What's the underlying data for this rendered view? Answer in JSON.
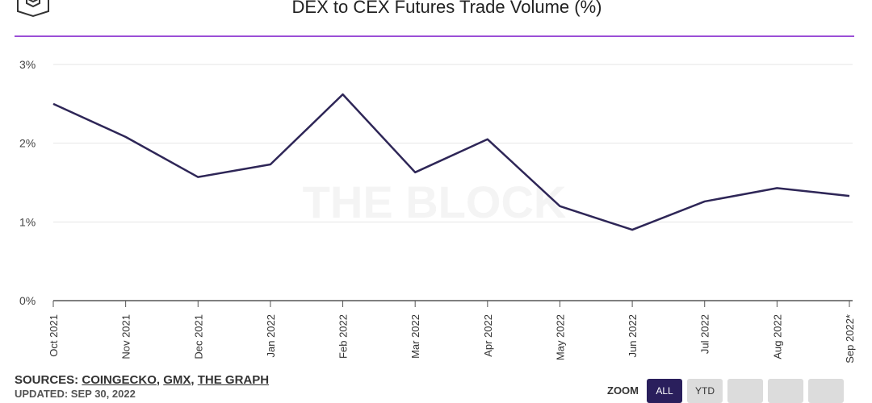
{
  "header": {
    "title": "DEX to CEX Futures Trade Volume (%)"
  },
  "footer": {
    "sources_label": "SOURCES:",
    "sources": [
      "COINGECKO",
      "GMX",
      "THE GRAPH"
    ],
    "updated": "UPDATED: SEP 30, 2022"
  },
  "zoom": {
    "label": "ZOOM",
    "buttons": [
      "ALL",
      "YTD",
      "",
      "",
      ""
    ],
    "active": "ALL"
  },
  "watermark": "THE BLOCK",
  "colors": {
    "line": "#2e2657",
    "accent_rule": "#9b4fd6",
    "zoom_active": "#2a1f5c"
  },
  "chart_data": {
    "type": "line",
    "title": "DEX to CEX Futures Trade Volume (%)",
    "categories": [
      "Oct 2021",
      "Nov 2021",
      "Dec 2021",
      "Jan 2022",
      "Feb 2022",
      "Mar 2022",
      "Apr 2022",
      "May 2022",
      "Jun 2022",
      "Jul 2022",
      "Aug 2022",
      "Sep 2022*"
    ],
    "series": [
      {
        "values": [
          2.5,
          2.08,
          1.57,
          1.73,
          2.62,
          1.63,
          2.05,
          1.2,
          0.9,
          1.26,
          1.43,
          1.33
        ]
      }
    ],
    "ylim": [
      0,
      3
    ],
    "yticks": [
      "0%",
      "1%",
      "2%",
      "3%"
    ],
    "grid": true,
    "legend": "none"
  }
}
